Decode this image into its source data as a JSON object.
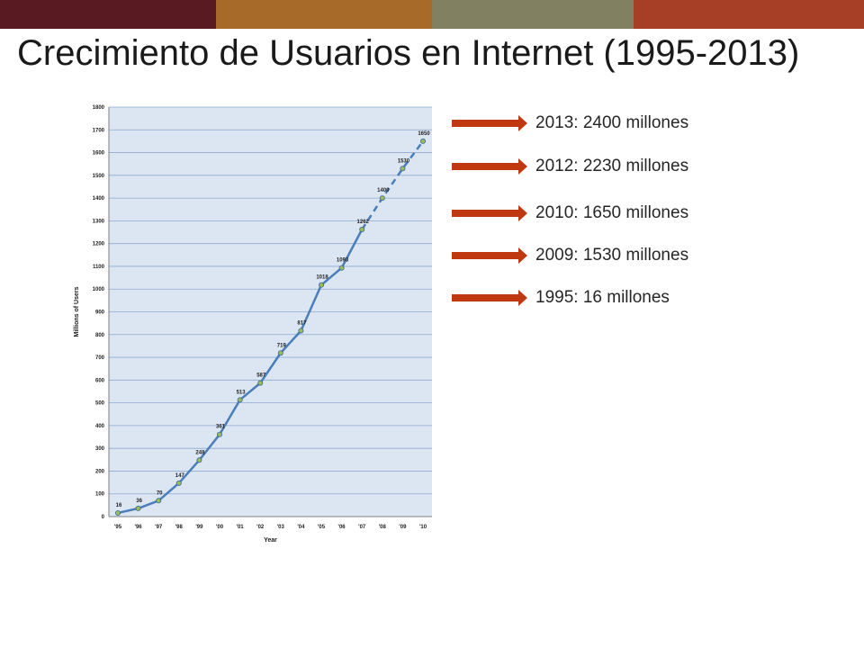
{
  "slide": {
    "title": "Crecimiento de Usuarios en Internet (1995-2013)",
    "top_bar_colors": [
      "#5a1a22",
      "#a86a28",
      "#818060",
      "#a63f26"
    ],
    "accent_arrow_color": "#c0380f"
  },
  "callouts": [
    {
      "text": "2013: 2400 millones"
    },
    {
      "text": "2012: 2230 millones"
    },
    {
      "text": "2010: 1650 millones"
    },
    {
      "text": "2009: 1530 millones"
    },
    {
      "text": "1995: 16 millones"
    }
  ],
  "chart_data": {
    "type": "line",
    "xlabel": "Year",
    "ylabel": "Millions of Users",
    "ylim": [
      0,
      1800
    ],
    "ytick_step": 100,
    "grid": true,
    "categories": [
      "'95",
      "'96",
      "'97",
      "'98",
      "'99",
      "'00",
      "'01",
      "'02",
      "'03",
      "'04",
      "'05",
      "'06",
      "'07",
      "'08",
      "'09",
      "'10"
    ],
    "values": [
      16,
      36,
      70,
      147,
      248,
      361,
      513,
      587,
      719,
      817,
      1018,
      1093,
      1262,
      1400,
      1530,
      1650
    ],
    "projected_from_index": 12,
    "colors": {
      "plot_background": "#dce6f2",
      "line": "#4a7ebb",
      "marker_fill": "#9bbb59",
      "gridline": "#8eaad3"
    }
  }
}
